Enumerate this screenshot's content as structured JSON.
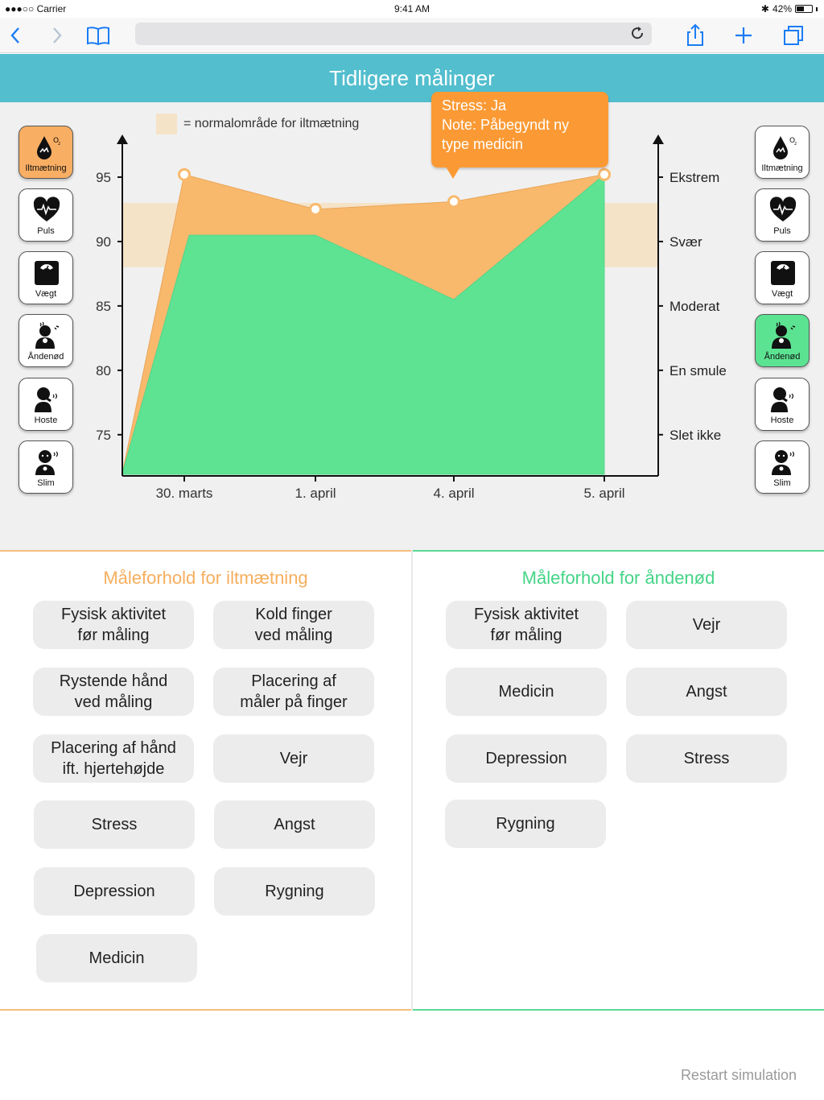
{
  "status_bar": {
    "carrier": "●●●○○ Carrier",
    "time": "9:41 AM",
    "battery": "42%"
  },
  "browser": {
    "back_icon": "chevron-left-icon",
    "forward_icon": "chevron-right-icon",
    "bookmarks_icon": "book-icon",
    "reload_icon": "reload-icon",
    "share_icon": "share-icon",
    "add_icon": "plus-icon",
    "tabs_icon": "tabs-icon"
  },
  "header": {
    "title": "Tidligere målinger"
  },
  "legend": {
    "text": "= normalområde for iltmætning"
  },
  "tooltip": {
    "line1": "Stress: Ja",
    "line2": "Note: Påbegyndt ny",
    "line3": "type medicin"
  },
  "left_icons": [
    {
      "label": "Iltmætning",
      "icon": "oxygen-drop-icon",
      "active": true
    },
    {
      "label": "Puls",
      "icon": "heart-pulse-icon",
      "active": false
    },
    {
      "label": "Vægt",
      "icon": "scale-icon",
      "active": false
    },
    {
      "label": "Åndenød",
      "icon": "breathless-person-icon",
      "active": false
    },
    {
      "label": "Hoste",
      "icon": "cough-person-icon",
      "active": false
    },
    {
      "label": "Slim",
      "icon": "mucus-person-icon",
      "active": false
    }
  ],
  "right_icons": [
    {
      "label": "Iltmætning",
      "icon": "oxygen-drop-icon",
      "active": false
    },
    {
      "label": "Puls",
      "icon": "heart-pulse-icon",
      "active": false
    },
    {
      "label": "Vægt",
      "icon": "scale-icon",
      "active": false
    },
    {
      "label": "Åndenød",
      "icon": "breathless-person-icon",
      "active": true
    },
    {
      "label": "Hoste",
      "icon": "cough-person-icon",
      "active": false
    },
    {
      "label": "Slim",
      "icon": "mucus-person-icon",
      "active": false
    }
  ],
  "chart_data": {
    "type": "area",
    "categories": [
      "30. marts",
      "1. april",
      "4. april",
      "5. april"
    ],
    "y_left": {
      "ticks": [
        95,
        90,
        85,
        80,
        75
      ],
      "range": [
        71.8,
        98
      ]
    },
    "y_right": {
      "ticks": [
        "Ekstrem",
        "Svær",
        "Moderat",
        "En smule",
        "Slet ikke"
      ]
    },
    "normal_range": [
      88,
      93
    ],
    "series": [
      {
        "name": "Iltmætning",
        "color": "#f8b96c",
        "values": [
          95.2,
          92.5,
          93.1,
          95.2
        ]
      },
      {
        "name": "Åndenød",
        "color": "#5de392",
        "values": [
          90.5,
          90.5,
          85.5,
          95.2
        ]
      }
    ],
    "start_value": 72
  },
  "left_panel": {
    "title": "Måleforhold for iltmætning",
    "items": [
      "Fysisk aktivitet\nfør måling",
      "Kold finger\nved måling",
      "Rystende hånd\nved måling",
      "Placering af\nmåler på finger",
      "Placering af hånd\nift. hjertehøjde",
      "Vejr",
      "Stress",
      "Angst",
      "Depression",
      "Rygning",
      "Medicin"
    ]
  },
  "right_panel": {
    "title": "Måleforhold for åndenød",
    "items": [
      "Fysisk aktivitet\nfør måling",
      "Vejr",
      "Medicin",
      "Angst",
      "Depression",
      "Stress",
      "Rygning"
    ]
  },
  "footer": {
    "restart": "Restart simulation"
  }
}
